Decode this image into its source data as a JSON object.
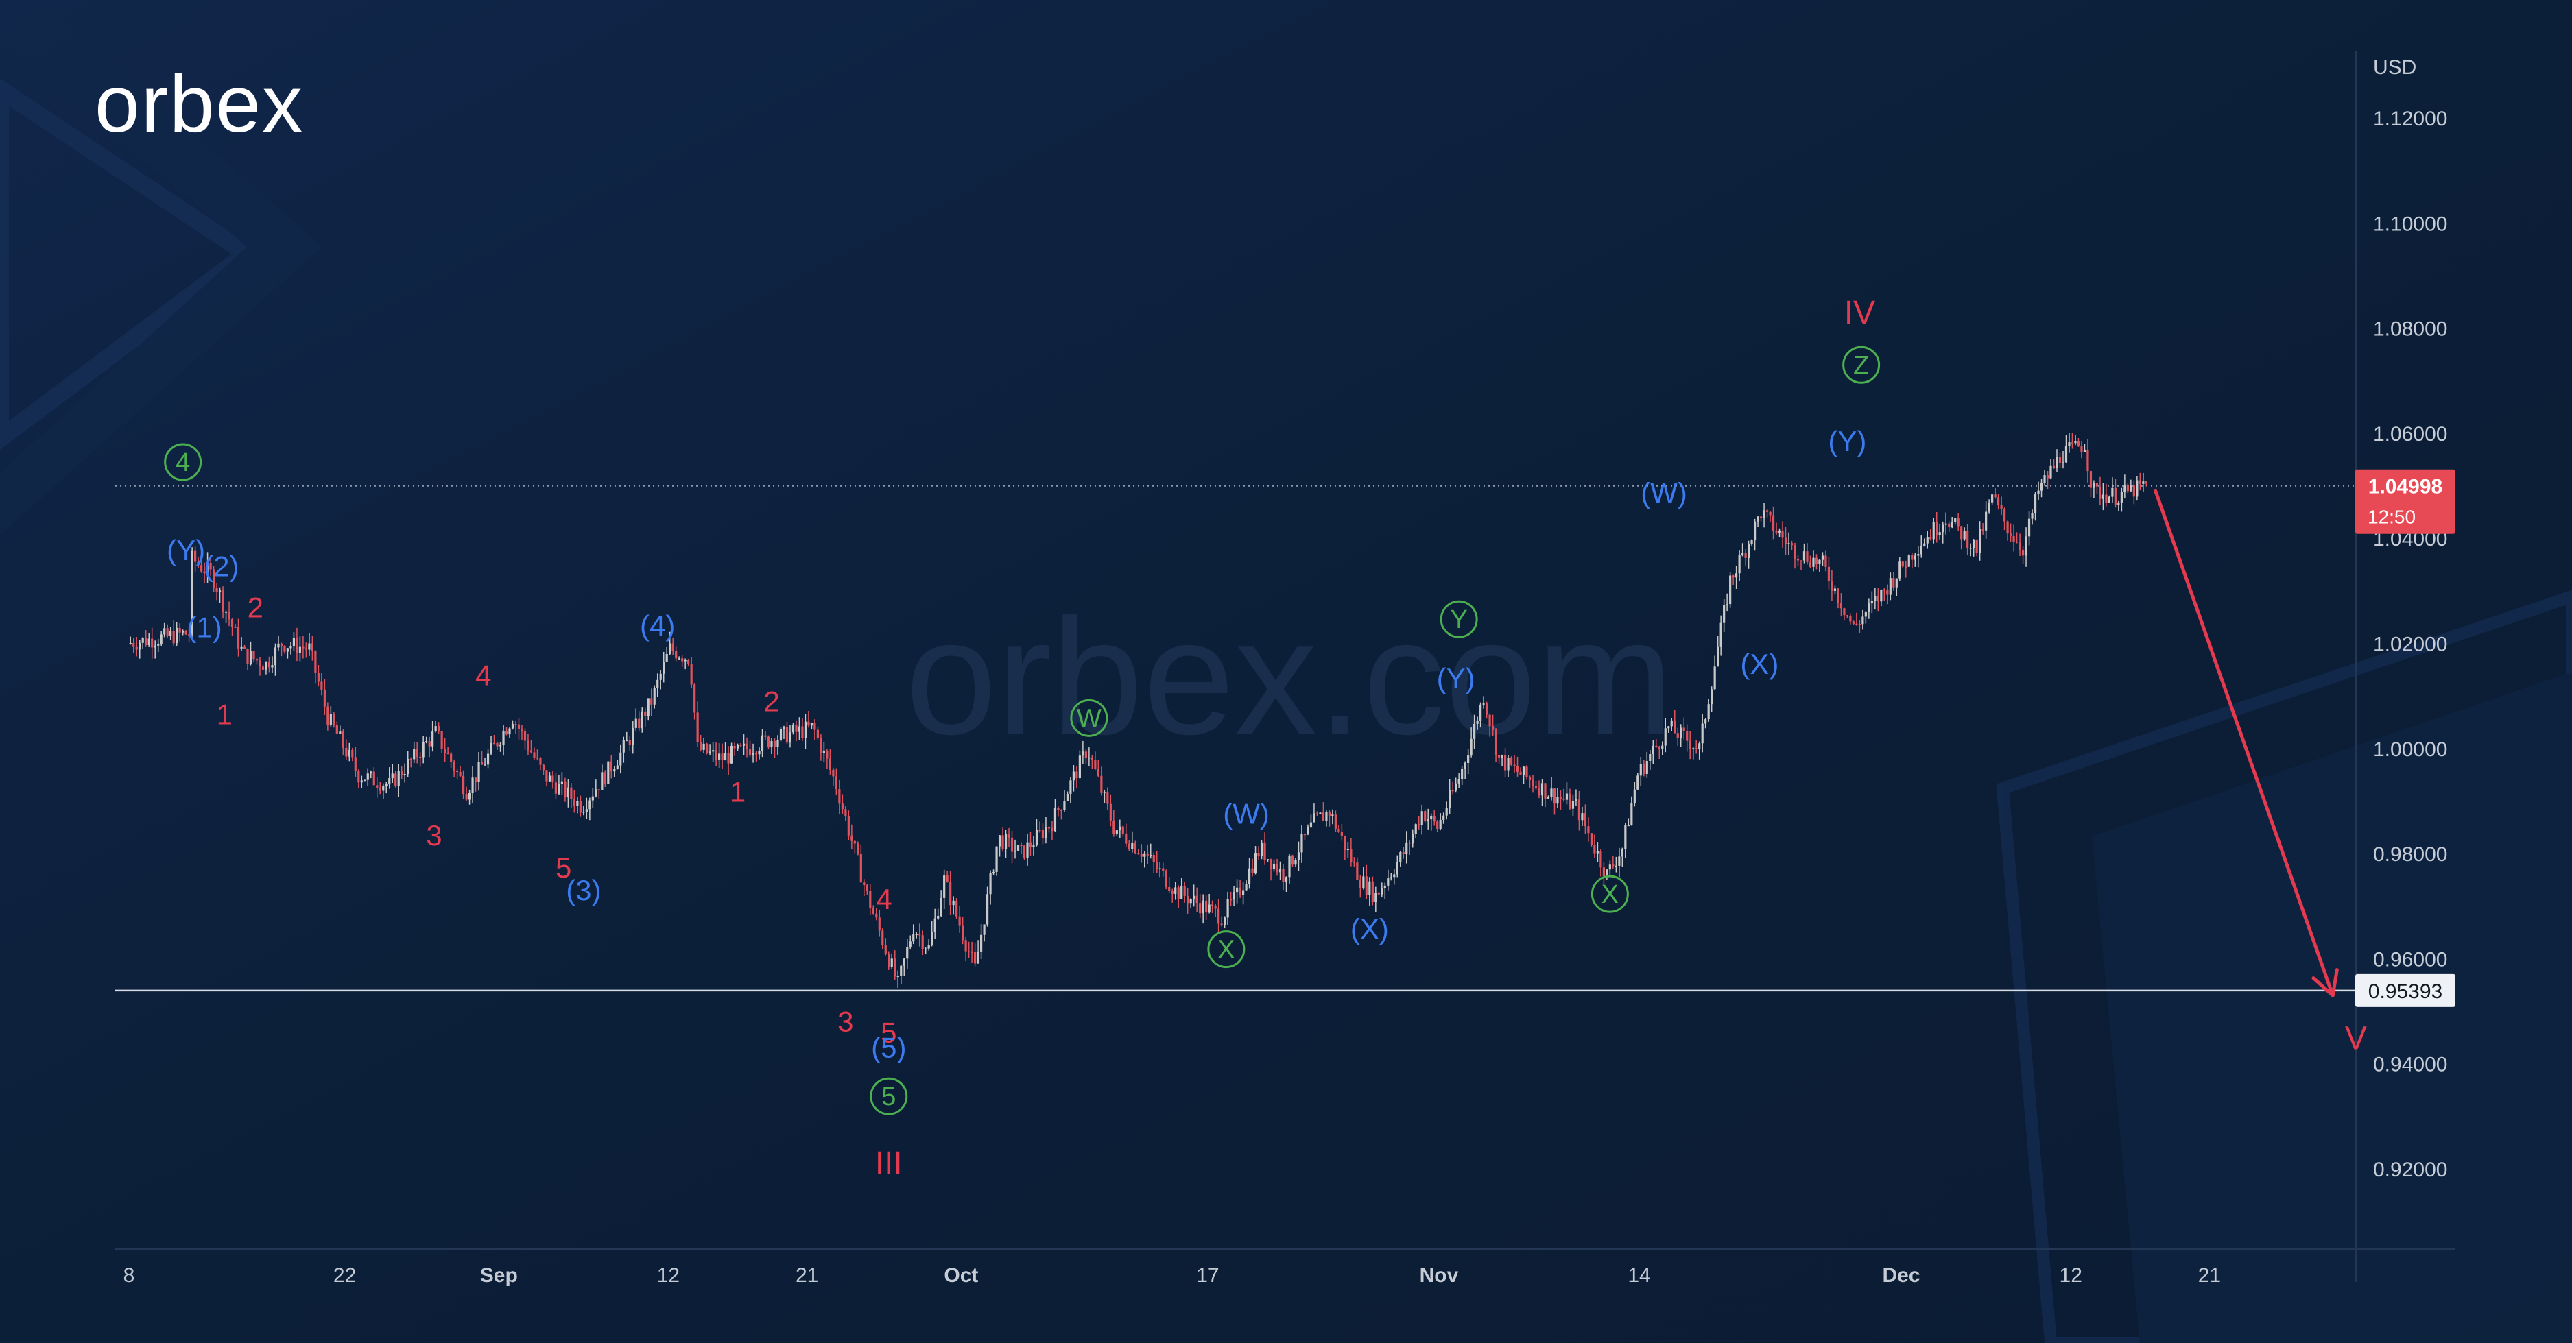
{
  "brand": {
    "logo_text": "orbex",
    "watermark": "orbex.com"
  },
  "colors": {
    "background": "#0c1f38",
    "candle_up": "#c9c9c9",
    "candle_down": "#e0535d",
    "red_label": "#e43a4f",
    "blue_label": "#3c7bef",
    "green_label": "#4caf50",
    "price_badge": "#e84a55",
    "axis_text": "#c6ccd6"
  },
  "chart_data": {
    "type": "candlestick",
    "title": "",
    "currency_label": "USD",
    "ylim": [
      0.905,
      1.13
    ],
    "y_ticks": [
      "1.12000",
      "1.10000",
      "1.08000",
      "1.06000",
      "1.04000",
      "1.02000",
      "1.00000",
      "0.98000",
      "0.96000",
      "0.94000",
      "0.92000"
    ],
    "x_ticks": [
      {
        "label": "8",
        "day": 0
      },
      {
        "label": "22",
        "day": 14
      },
      {
        "label": "Sep",
        "day": 24
      },
      {
        "label": "12",
        "day": 35
      },
      {
        "label": "21",
        "day": 44
      },
      {
        "label": "Oct",
        "day": 54
      },
      {
        "label": "17",
        "day": 70
      },
      {
        "label": "Nov",
        "day": 85
      },
      {
        "label": "14",
        "day": 98
      },
      {
        "label": "Dec",
        "day": 115
      },
      {
        "label": "12",
        "day": 126
      },
      {
        "label": "21",
        "day": 135
      }
    ],
    "price_path": [
      [
        0,
        1.02
      ],
      [
        4,
        1.022
      ],
      [
        4.2,
        1.036
      ],
      [
        5.5,
        1.033
      ],
      [
        7.5,
        1.018
      ],
      [
        9,
        1.016
      ],
      [
        10,
        1.02
      ],
      [
        11.8,
        1.019
      ],
      [
        13,
        1.006
      ],
      [
        15,
        0.995
      ],
      [
        17,
        0.993
      ],
      [
        20,
        1.003
      ],
      [
        22,
        0.992
      ],
      [
        25,
        1.006
      ],
      [
        27,
        0.995
      ],
      [
        29.5,
        0.989
      ],
      [
        32,
        0.999
      ],
      [
        34,
        1.009
      ],
      [
        35.2,
        1.019
      ],
      [
        36.5,
        1.017
      ],
      [
        37,
        1.0
      ],
      [
        38.5,
        0.998
      ],
      [
        42,
        1.002
      ],
      [
        44.5,
        1.004
      ],
      [
        46,
        0.993
      ],
      [
        48,
        0.972
      ],
      [
        50,
        0.955
      ],
      [
        51,
        0.966
      ],
      [
        52,
        0.962
      ],
      [
        53,
        0.975
      ],
      [
        55,
        0.958
      ],
      [
        56.5,
        0.983
      ],
      [
        58,
        0.98
      ],
      [
        60,
        0.986
      ],
      [
        62.3,
        1.0
      ],
      [
        64,
        0.985
      ],
      [
        66,
        0.98
      ],
      [
        68,
        0.973
      ],
      [
        71,
        0.968
      ],
      [
        72,
        0.972
      ],
      [
        73.5,
        0.981
      ],
      [
        75,
        0.976
      ],
      [
        77,
        0.986
      ],
      [
        78,
        0.988
      ],
      [
        80,
        0.975
      ],
      [
        81,
        0.972
      ],
      [
        83,
        0.981
      ],
      [
        84,
        0.988
      ],
      [
        85,
        0.985
      ],
      [
        86.5,
        0.995
      ],
      [
        88,
        1.01
      ],
      [
        89,
        0.998
      ],
      [
        92,
        0.992
      ],
      [
        94,
        0.989
      ],
      [
        96,
        0.976
      ],
      [
        97,
        0.981
      ],
      [
        98,
        0.995
      ],
      [
        100,
        1.004
      ],
      [
        102,
        1.0
      ],
      [
        104,
        1.032
      ],
      [
        105,
        1.038
      ],
      [
        106,
        1.045
      ],
      [
        108,
        1.038
      ],
      [
        110,
        1.035
      ],
      [
        112,
        1.023
      ],
      [
        114,
        1.03
      ],
      [
        116,
        1.038
      ],
      [
        118,
        1.044
      ],
      [
        120,
        1.038
      ],
      [
        121,
        1.048
      ],
      [
        122,
        1.042
      ],
      [
        123,
        1.038
      ],
      [
        124,
        1.049
      ],
      [
        125.5,
        1.056
      ],
      [
        127,
        1.058
      ],
      [
        127.5,
        1.049
      ],
      [
        129,
        1.048
      ],
      [
        131,
        1.05
      ]
    ],
    "current_price": {
      "value": "1.04998",
      "countdown": "12:50",
      "level": 1.04998
    },
    "support_level": {
      "value": "0.95393",
      "level": 0.95393
    },
    "projection": {
      "from": [
        131.5,
        1.049
      ],
      "to": [
        143,
        0.953
      ],
      "label": "V"
    },
    "wave_labels": [
      {
        "text": "1",
        "color": "red",
        "day": 6.2,
        "price": 1.0064
      },
      {
        "text": "2",
        "color": "red",
        "day": 8.2,
        "price": 1.0268
      },
      {
        "text": "3",
        "color": "red",
        "day": 19.8,
        "price": 0.9834
      },
      {
        "text": "4",
        "color": "red",
        "day": 23,
        "price": 1.0139
      },
      {
        "text": "5",
        "color": "red",
        "day": 28.2,
        "price": 0.9773
      },
      {
        "text": "2",
        "color": "red",
        "day": 41.7,
        "price": 1.0089
      },
      {
        "text": "1",
        "color": "red",
        "day": 39.5,
        "price": 0.9917
      },
      {
        "text": "4",
        "color": "red",
        "day": 49,
        "price": 0.9713
      },
      {
        "text": "3",
        "color": "red",
        "day": 46.5,
        "price": 0.948
      },
      {
        "text": "5",
        "color": "red",
        "day": 49.3,
        "price": 0.9459
      },
      {
        "text": "III",
        "color": "red",
        "day": 49.3,
        "price": 0.9208
      },
      {
        "text": "IV",
        "color": "red",
        "day": 112.3,
        "price": 1.0827
      },
      {
        "text": "V",
        "color": "red",
        "day": 144.5,
        "price": 0.9446
      },
      {
        "text": "(Y)",
        "color": "blue",
        "day": 3.7,
        "price": 1.0377
      },
      {
        "text": "(2)",
        "color": "blue",
        "day": 6.0,
        "price": 1.0346
      },
      {
        "text": "(1)",
        "color": "blue",
        "day": 4.9,
        "price": 1.023
      },
      {
        "text": "(4)",
        "color": "blue",
        "day": 34.3,
        "price": 1.0233
      },
      {
        "text": "(3)",
        "color": "blue",
        "day": 29.5,
        "price": 0.973
      },
      {
        "text": "(5)",
        "color": "blue",
        "day": 49.3,
        "price": 0.943
      },
      {
        "text": "(W)",
        "color": "blue",
        "day": 72.5,
        "price": 0.9875
      },
      {
        "text": "(X)",
        "color": "blue",
        "day": 80.5,
        "price": 0.9656
      },
      {
        "text": "(Y)",
        "color": "blue",
        "day": 86.1,
        "price": 1.0133
      },
      {
        "text": "(W)",
        "color": "blue",
        "day": 99.6,
        "price": 1.0486
      },
      {
        "text": "(X)",
        "color": "blue",
        "day": 105.8,
        "price": 1.016
      },
      {
        "text": "(Y)",
        "color": "blue",
        "day": 111.5,
        "price": 1.0584
      }
    ],
    "circled_labels": [
      {
        "text": "4",
        "day": 3.5,
        "price": 1.0545
      },
      {
        "text": "5",
        "day": 49.3,
        "price": 0.9338
      },
      {
        "text": "W",
        "day": 62.3,
        "price": 1.0058
      },
      {
        "text": "X",
        "day": 71.2,
        "price": 0.9618
      },
      {
        "text": "Y",
        "day": 86.3,
        "price": 1.0246
      },
      {
        "text": "X",
        "day": 96.1,
        "price": 0.9723
      },
      {
        "text": "Z",
        "day": 112.4,
        "price": 1.073
      }
    ]
  }
}
